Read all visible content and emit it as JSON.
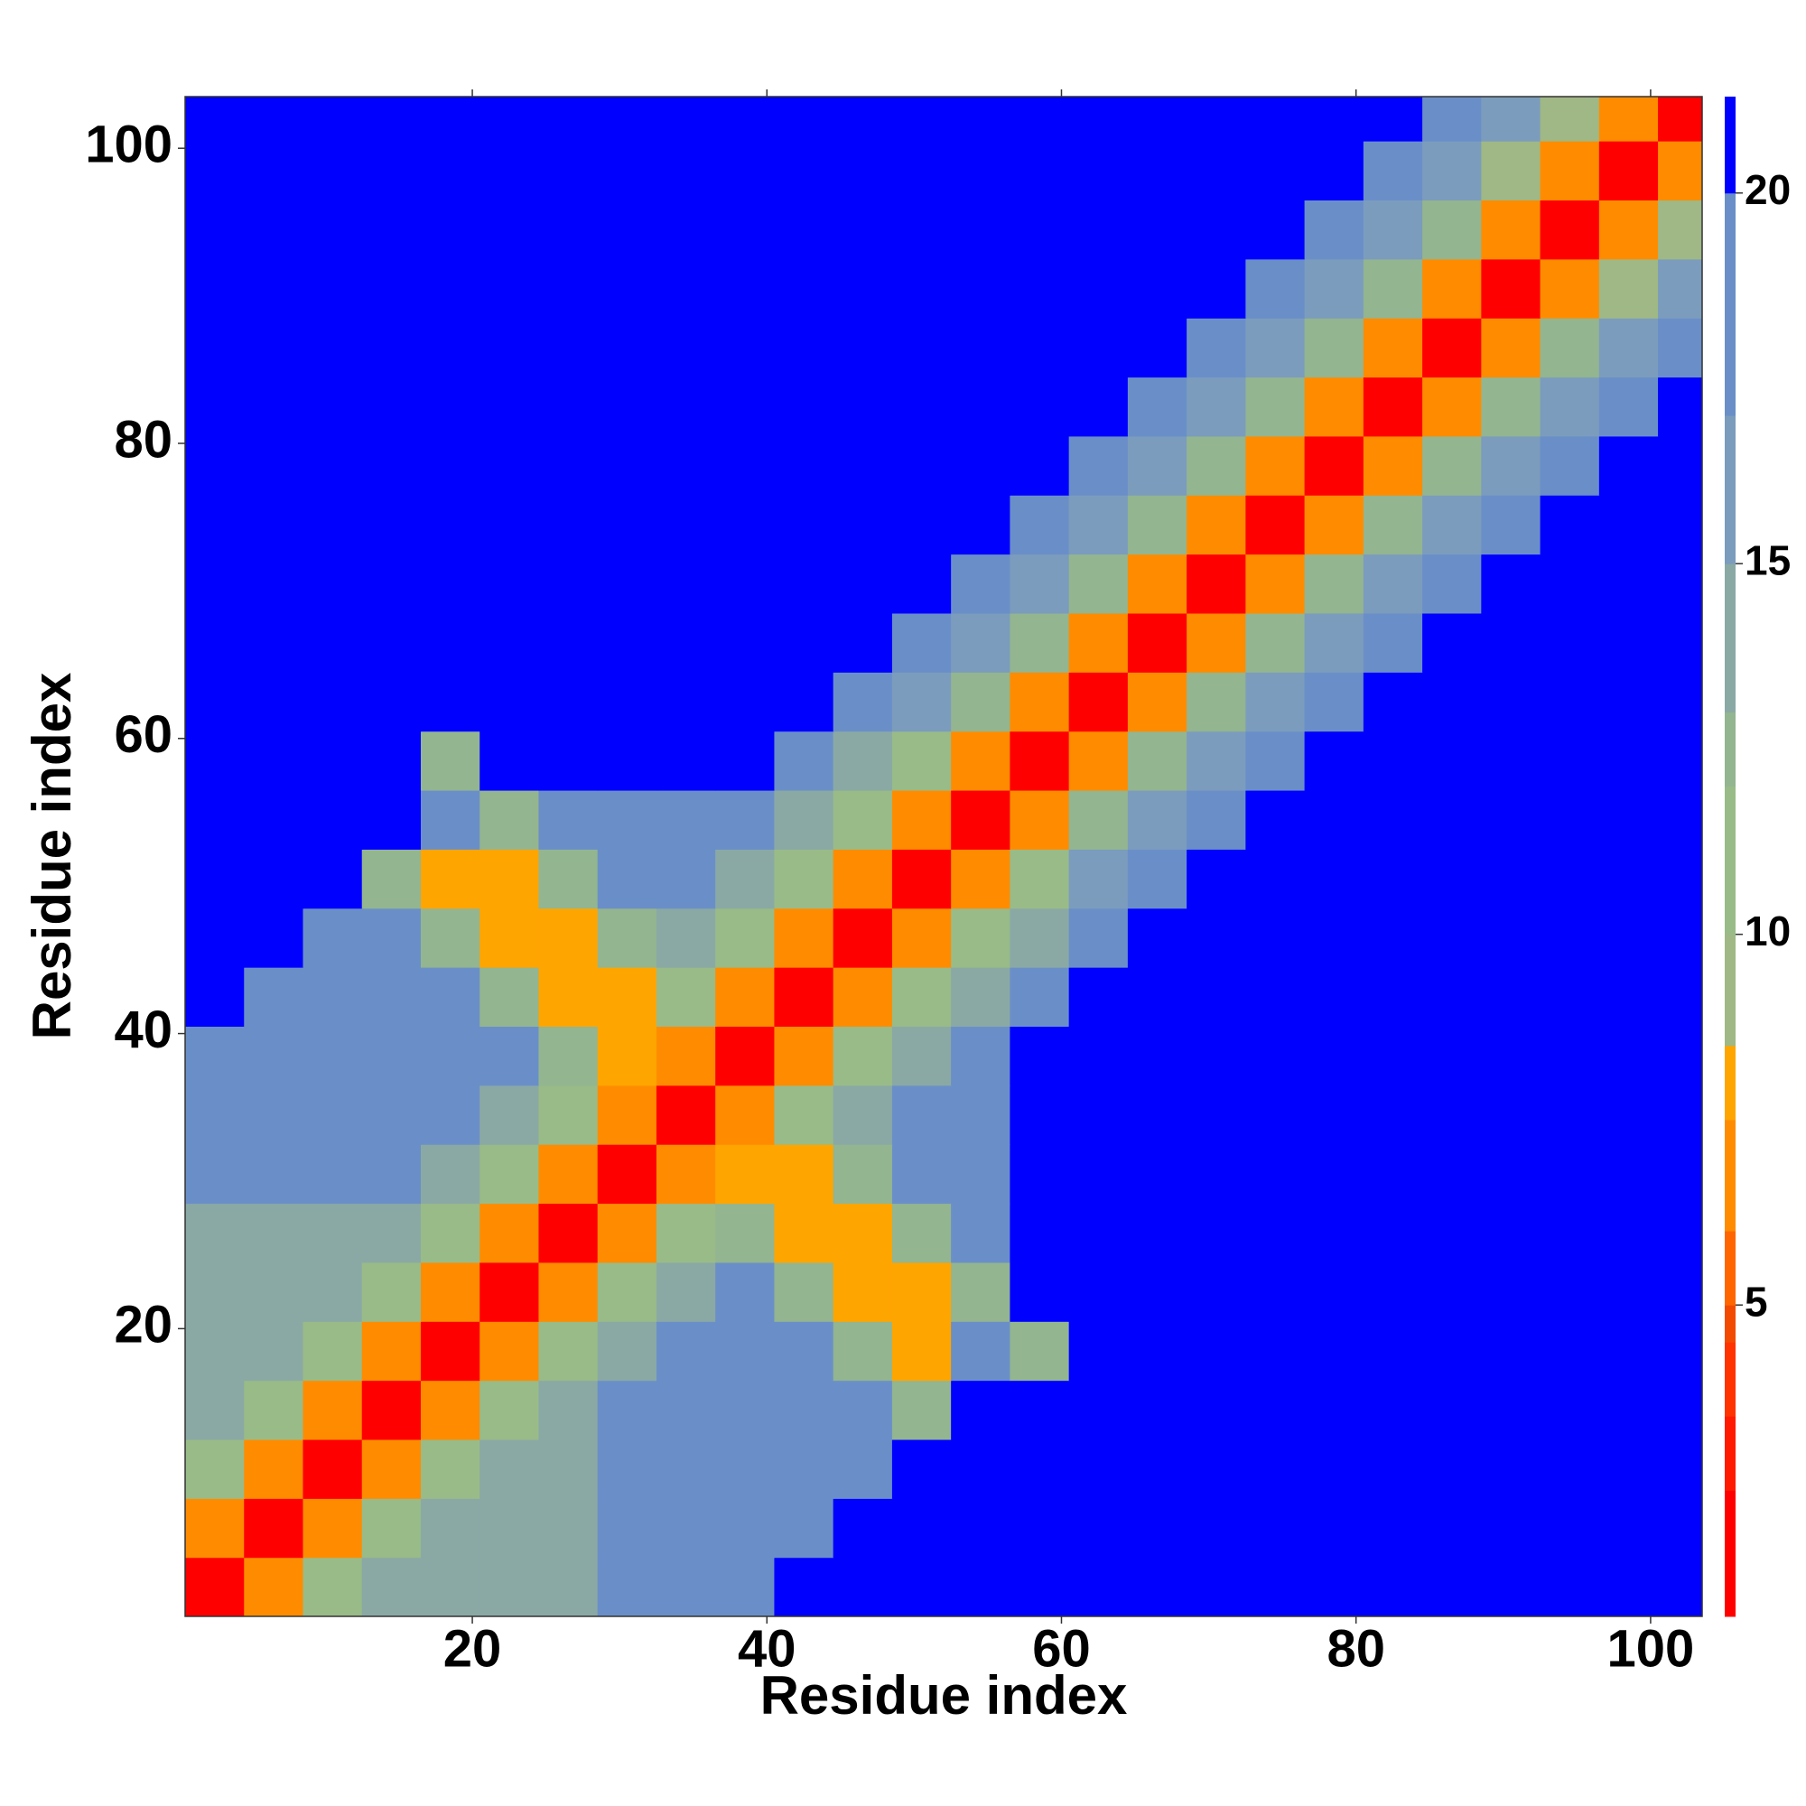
{
  "chart_data": {
    "type": "heatmap",
    "xlabel": "Residue index",
    "ylabel": "Residue index",
    "x": [
      2.5,
      6.5,
      10.5,
      14.5,
      18.5,
      22.5,
      26.5,
      30.5,
      34.5,
      38.5,
      42.5,
      46.5,
      50.5,
      54.5,
      58.5,
      62.5,
      66.5,
      70.5,
      74.5,
      78.5,
      82.5,
      86.5,
      90.5,
      94.5,
      98.5,
      102.5
    ],
    "y": [
      2.5,
      6.5,
      10.5,
      14.5,
      18.5,
      22.5,
      26.5,
      30.5,
      34.5,
      38.5,
      42.5,
      46.5,
      50.5,
      54.5,
      58.5,
      62.5,
      66.5,
      70.5,
      74.5,
      78.5,
      82.5,
      86.5,
      90.5,
      94.5,
      98.5,
      102.5
    ],
    "values": [
      [
        2,
        6,
        10,
        13,
        14,
        14,
        14,
        17,
        17,
        17,
        21,
        21,
        21,
        21,
        21,
        21,
        21,
        21,
        21,
        21,
        21,
        21,
        21,
        21,
        21,
        21
      ],
      [
        6,
        2,
        6,
        10,
        13,
        14,
        14,
        17,
        17,
        17,
        17,
        21,
        21,
        21,
        21,
        21,
        21,
        21,
        21,
        21,
        21,
        21,
        21,
        21,
        21,
        21
      ],
      [
        10,
        6,
        2,
        6,
        10,
        13,
        14,
        17,
        17,
        17,
        17,
        17,
        21,
        21,
        21,
        21,
        21,
        21,
        21,
        21,
        21,
        21,
        21,
        21,
        21,
        21
      ],
      [
        13,
        10,
        6,
        2,
        6,
        10,
        13,
        17,
        17,
        17,
        17,
        17,
        12,
        21,
        21,
        21,
        21,
        21,
        21,
        21,
        21,
        21,
        21,
        21,
        21,
        21
      ],
      [
        14,
        13,
        10,
        6,
        2,
        6,
        10,
        13,
        17,
        17,
        17,
        12,
        8,
        17,
        12,
        21,
        21,
        21,
        21,
        21,
        21,
        21,
        21,
        21,
        21,
        21
      ],
      [
        14,
        14,
        13,
        10,
        6,
        2,
        6,
        10,
        13,
        17,
        12,
        8,
        8,
        12,
        21,
        21,
        21,
        21,
        21,
        21,
        21,
        21,
        21,
        21,
        21,
        21
      ],
      [
        14,
        14,
        14,
        13,
        10,
        6,
        2,
        6,
        10,
        12,
        8,
        8,
        12,
        17,
        21,
        21,
        21,
        21,
        21,
        21,
        21,
        21,
        21,
        21,
        21,
        21
      ],
      [
        17,
        17,
        17,
        17,
        13,
        10,
        6,
        2,
        6,
        8,
        8,
        12,
        17,
        17,
        21,
        21,
        21,
        21,
        21,
        21,
        21,
        21,
        21,
        21,
        21,
        21
      ],
      [
        17,
        17,
        17,
        17,
        17,
        13,
        10,
        6,
        2,
        6,
        10,
        13,
        17,
        17,
        21,
        21,
        21,
        21,
        21,
        21,
        21,
        21,
        21,
        21,
        21,
        21
      ],
      [
        17,
        17,
        17,
        17,
        17,
        17,
        12,
        8,
        6,
        2,
        6,
        10,
        13,
        17,
        21,
        21,
        21,
        21,
        21,
        21,
        21,
        21,
        21,
        21,
        21,
        21
      ],
      [
        21,
        17,
        17,
        17,
        17,
        12,
        8,
        8,
        10,
        6,
        2,
        6,
        10,
        13,
        17,
        21,
        21,
        21,
        21,
        21,
        21,
        21,
        21,
        21,
        21,
        21
      ],
      [
        21,
        21,
        17,
        17,
        12,
        8,
        8,
        12,
        13,
        10,
        6,
        2,
        6,
        10,
        13,
        19,
        21,
        21,
        21,
        21,
        21,
        21,
        21,
        21,
        21,
        21
      ],
      [
        21,
        21,
        21,
        12,
        8,
        8,
        12,
        17,
        17,
        13,
        10,
        6,
        2,
        6,
        10,
        15,
        19,
        21,
        21,
        21,
        21,
        21,
        21,
        21,
        21,
        21
      ],
      [
        21,
        21,
        21,
        21,
        17,
        12,
        17,
        17,
        17,
        17,
        13,
        10,
        6,
        2,
        6,
        12,
        15,
        19,
        21,
        21,
        21,
        21,
        21,
        21,
        21,
        21
      ],
      [
        21,
        21,
        21,
        21,
        12,
        21,
        21,
        21,
        21,
        21,
        17,
        13,
        10,
        6,
        2,
        6,
        12,
        15,
        19,
        21,
        21,
        21,
        21,
        21,
        21,
        21
      ],
      [
        21,
        21,
        21,
        21,
        21,
        21,
        21,
        21,
        21,
        21,
        21,
        19,
        15,
        12,
        6,
        2,
        6,
        12,
        15,
        19,
        21,
        21,
        21,
        21,
        21,
        21
      ],
      [
        21,
        21,
        21,
        21,
        21,
        21,
        21,
        21,
        21,
        21,
        21,
        21,
        19,
        15,
        12,
        6,
        2,
        6,
        12,
        15,
        19,
        21,
        21,
        21,
        21,
        21
      ],
      [
        21,
        21,
        21,
        21,
        21,
        21,
        21,
        21,
        21,
        21,
        21,
        21,
        21,
        19,
        15,
        12,
        6,
        2,
        6,
        12,
        15,
        19,
        21,
        21,
        21,
        21
      ],
      [
        21,
        21,
        21,
        21,
        21,
        21,
        21,
        21,
        21,
        21,
        21,
        21,
        21,
        21,
        19,
        15,
        12,
        6,
        2,
        6,
        12,
        15,
        19,
        21,
        21,
        21
      ],
      [
        21,
        21,
        21,
        21,
        21,
        21,
        21,
        21,
        21,
        21,
        21,
        21,
        21,
        21,
        21,
        19,
        15,
        12,
        6,
        2,
        6,
        12,
        15,
        19,
        21,
        21
      ],
      [
        21,
        21,
        21,
        21,
        21,
        21,
        21,
        21,
        21,
        21,
        21,
        21,
        21,
        21,
        21,
        21,
        19,
        15,
        12,
        6,
        2,
        6,
        12,
        15,
        19,
        21
      ],
      [
        21,
        21,
        21,
        21,
        21,
        21,
        21,
        21,
        21,
        21,
        21,
        21,
        21,
        21,
        21,
        21,
        21,
        19,
        15,
        12,
        6,
        2,
        6,
        12,
        15,
        19
      ],
      [
        21,
        21,
        21,
        21,
        21,
        21,
        21,
        21,
        21,
        21,
        21,
        21,
        21,
        21,
        21,
        21,
        21,
        21,
        19,
        15,
        12,
        6,
        2,
        6,
        9,
        15
      ],
      [
        21,
        21,
        21,
        21,
        21,
        21,
        21,
        21,
        21,
        21,
        21,
        21,
        21,
        21,
        21,
        21,
        21,
        21,
        21,
        19,
        15,
        12,
        6,
        2,
        6,
        9
      ],
      [
        21,
        21,
        21,
        21,
        21,
        21,
        21,
        21,
        21,
        21,
        21,
        21,
        21,
        21,
        21,
        21,
        21,
        21,
        21,
        21,
        19,
        15,
        9,
        6,
        2,
        6
      ],
      [
        21,
        21,
        21,
        21,
        21,
        21,
        21,
        21,
        21,
        21,
        21,
        21,
        21,
        21,
        21,
        21,
        21,
        21,
        21,
        21,
        21,
        19,
        15,
        9,
        6,
        2
      ]
    ],
    "xlim": [
      0.5,
      103.5
    ],
    "ylim": [
      0.5,
      103.5
    ],
    "xticks": [
      20,
      40,
      60,
      80,
      100
    ],
    "yticks": [
      20,
      40,
      60,
      80,
      100
    ],
    "colorbar": {
      "lim": [
        0.8,
        21.3
      ],
      "ticks": [
        5,
        10,
        15,
        20
      ],
      "levels": [
        0.8,
        2.5,
        3.5,
        4.5,
        5,
        6,
        7.5,
        8.5,
        10,
        12,
        13,
        15,
        17,
        20,
        21.3
      ],
      "colors": [
        "#ff0000",
        "#ff1a00",
        "#ff3300",
        "#f24a00",
        "#ff6600",
        "#ff8c00",
        "#ffa500",
        "#9fb885",
        "#99bb88",
        "#93b590",
        "#8aa9a5",
        "#7b9cbd",
        "#6a8fc8",
        "#0000ff"
      ]
    }
  }
}
